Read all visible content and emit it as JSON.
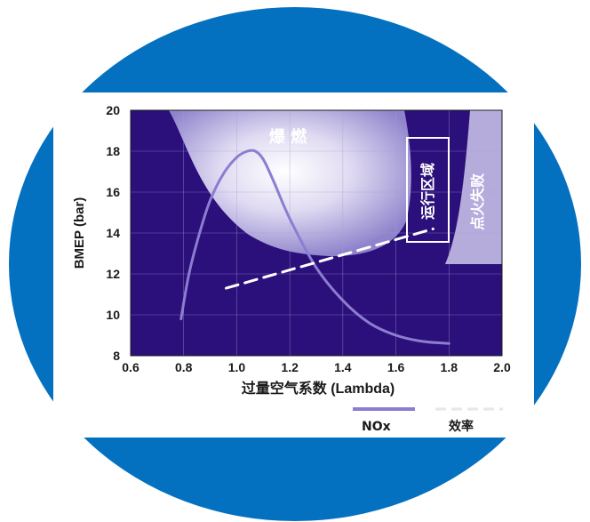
{
  "chart_data": {
    "type": "line",
    "title": "",
    "xlabel": "过量空气系数 (Lambda)",
    "ylabel": "BMEP (bar)",
    "xlim": [
      0.6,
      2.0
    ],
    "ylim": [
      8,
      20
    ],
    "xticks": [
      "0.6",
      "0.8",
      "1.0",
      "1.2",
      "1.4",
      "1.6",
      "1.8",
      "2.0"
    ],
    "yticks": [
      "8",
      "10",
      "12",
      "14",
      "16",
      "18",
      "20"
    ],
    "grid": true,
    "legend_position": "bottom-right",
    "regions": [
      {
        "label": "爆 燃",
        "description": "knock region, upper area",
        "color": "#c9c1e6"
      },
      {
        "label": "点火失败",
        "description": "misfire region, right side",
        "color": "#b5acdc"
      },
      {
        "label": "运行区域",
        "description": "operating region, outlined box",
        "color": "#ffffff"
      }
    ],
    "series": [
      {
        "name": "NOx",
        "style": "solid",
        "color": "#8b7ed0",
        "x": [
          0.79,
          0.82,
          0.86,
          0.9,
          0.95,
          1.0,
          1.04,
          1.07,
          1.1,
          1.14,
          1.2,
          1.3,
          1.4,
          1.5,
          1.6,
          1.7,
          1.8
        ],
        "y": [
          9.8,
          12.0,
          14.0,
          15.6,
          16.9,
          17.7,
          18.0,
          18.0,
          17.6,
          16.5,
          14.7,
          12.3,
          10.7,
          9.6,
          9.0,
          8.7,
          8.6
        ]
      },
      {
        "name": "效率",
        "style": "dashed",
        "color": "#ffffff",
        "x": [
          0.96,
          1.74
        ],
        "y": [
          11.3,
          14.2
        ]
      }
    ]
  }
}
